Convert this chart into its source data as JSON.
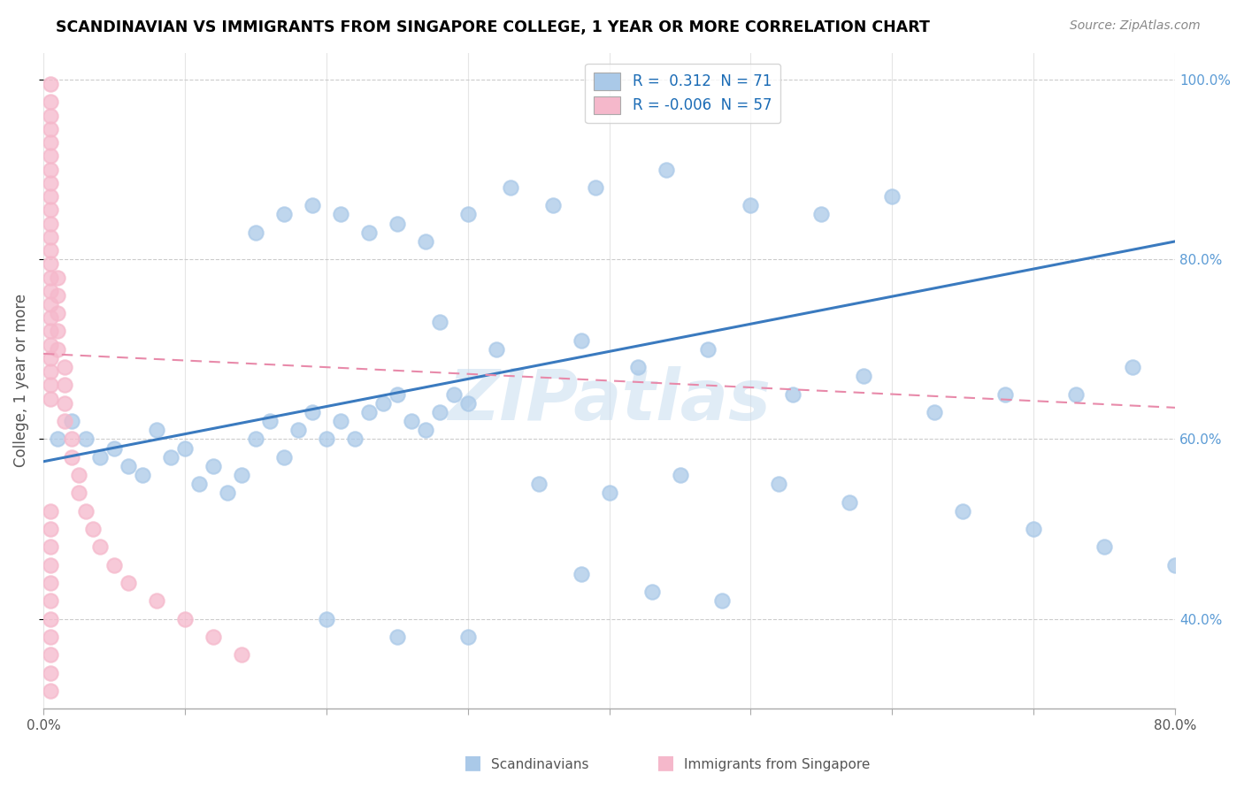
{
  "title": "SCANDINAVIAN VS IMMIGRANTS FROM SINGAPORE COLLEGE, 1 YEAR OR MORE CORRELATION CHART",
  "source": "Source: ZipAtlas.com",
  "ylabel": "College, 1 year or more",
  "watermark": "ZIPatlas",
  "xlim": [
    0.0,
    0.8
  ],
  "ylim": [
    0.3,
    1.03
  ],
  "blue_color": "#aac9e8",
  "pink_color": "#f5b8cb",
  "line_blue": "#3a7abf",
  "line_pink": "#e88aaa",
  "blue_line_x0": 0.0,
  "blue_line_y0": 0.575,
  "blue_line_x1": 0.8,
  "blue_line_y1": 0.82,
  "pink_line_x0": 0.0,
  "pink_line_y0": 0.695,
  "pink_line_x1": 0.8,
  "pink_line_y1": 0.635,
  "scan_x": [
    0.01,
    0.02,
    0.03,
    0.04,
    0.05,
    0.06,
    0.07,
    0.08,
    0.09,
    0.1,
    0.11,
    0.12,
    0.13,
    0.14,
    0.15,
    0.16,
    0.17,
    0.18,
    0.19,
    0.2,
    0.21,
    0.22,
    0.23,
    0.24,
    0.25,
    0.26,
    0.27,
    0.28,
    0.29,
    0.3,
    0.15,
    0.17,
    0.19,
    0.21,
    0.23,
    0.25,
    0.27,
    0.3,
    0.33,
    0.36,
    0.39,
    0.44,
    0.5,
    0.55,
    0.6,
    0.28,
    0.32,
    0.38,
    0.42,
    0.47,
    0.53,
    0.58,
    0.63,
    0.68,
    0.73,
    0.77,
    0.65,
    0.7,
    0.75,
    0.8,
    0.35,
    0.4,
    0.45,
    0.52,
    0.57,
    0.38,
    0.43,
    0.48,
    0.2,
    0.25,
    0.3
  ],
  "scan_y": [
    0.6,
    0.62,
    0.6,
    0.58,
    0.59,
    0.57,
    0.56,
    0.61,
    0.58,
    0.59,
    0.55,
    0.57,
    0.54,
    0.56,
    0.6,
    0.62,
    0.58,
    0.61,
    0.63,
    0.6,
    0.62,
    0.6,
    0.63,
    0.64,
    0.65,
    0.62,
    0.61,
    0.63,
    0.65,
    0.64,
    0.83,
    0.85,
    0.86,
    0.85,
    0.83,
    0.84,
    0.82,
    0.85,
    0.88,
    0.86,
    0.88,
    0.9,
    0.86,
    0.85,
    0.87,
    0.73,
    0.7,
    0.71,
    0.68,
    0.7,
    0.65,
    0.67,
    0.63,
    0.65,
    0.65,
    0.68,
    0.52,
    0.5,
    0.48,
    0.46,
    0.55,
    0.54,
    0.56,
    0.55,
    0.53,
    0.45,
    0.43,
    0.42,
    0.4,
    0.38,
    0.38
  ],
  "sing_x": [
    0.005,
    0.005,
    0.005,
    0.005,
    0.005,
    0.005,
    0.005,
    0.005,
    0.005,
    0.005,
    0.005,
    0.005,
    0.005,
    0.005,
    0.005,
    0.005,
    0.005,
    0.005,
    0.005,
    0.005,
    0.005,
    0.005,
    0.005,
    0.005,
    0.01,
    0.01,
    0.01,
    0.01,
    0.01,
    0.015,
    0.015,
    0.015,
    0.015,
    0.02,
    0.02,
    0.025,
    0.025,
    0.03,
    0.035,
    0.04,
    0.05,
    0.06,
    0.08,
    0.1,
    0.12,
    0.14,
    0.005,
    0.005,
    0.005,
    0.005,
    0.005,
    0.005,
    0.005,
    0.005,
    0.005,
    0.005,
    0.005
  ],
  "sing_y": [
    0.995,
    0.975,
    0.96,
    0.945,
    0.93,
    0.915,
    0.9,
    0.885,
    0.87,
    0.855,
    0.84,
    0.825,
    0.81,
    0.795,
    0.78,
    0.765,
    0.75,
    0.735,
    0.72,
    0.705,
    0.69,
    0.675,
    0.66,
    0.645,
    0.78,
    0.76,
    0.74,
    0.72,
    0.7,
    0.68,
    0.66,
    0.64,
    0.62,
    0.6,
    0.58,
    0.56,
    0.54,
    0.52,
    0.5,
    0.48,
    0.46,
    0.44,
    0.42,
    0.4,
    0.38,
    0.36,
    0.52,
    0.5,
    0.48,
    0.46,
    0.44,
    0.42,
    0.4,
    0.38,
    0.36,
    0.34,
    0.32
  ]
}
